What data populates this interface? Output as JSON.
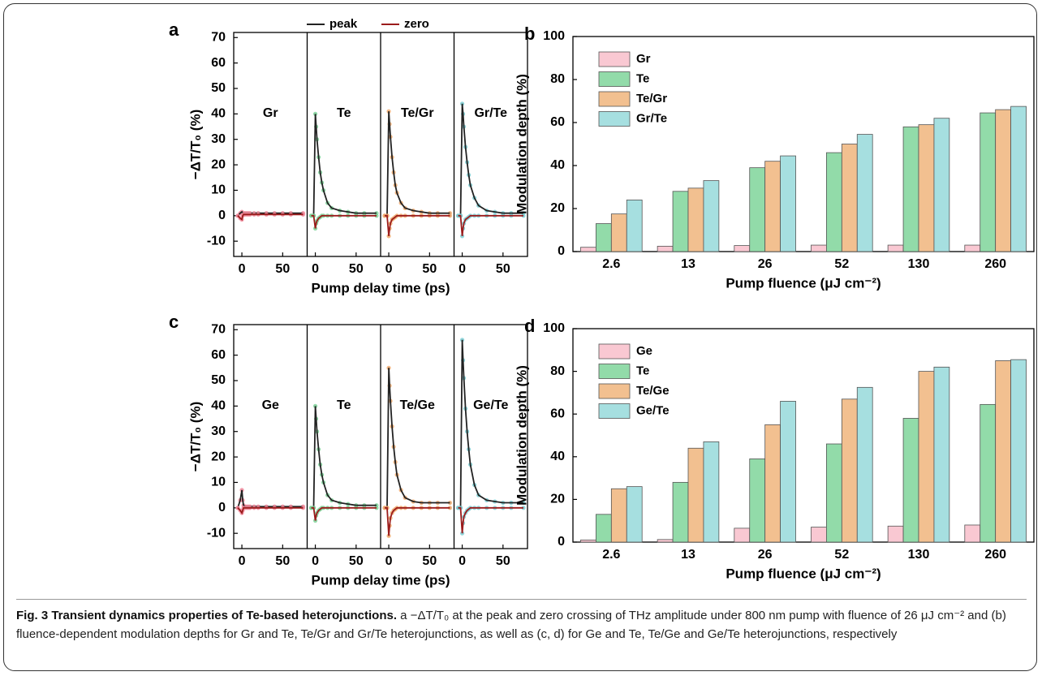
{
  "chart_data": [
    {
      "type": "line",
      "panel": "a",
      "y_label": "−ΔT/T₀ (%)",
      "x_label": "Pump delay time (ps)",
      "series": [
        {
          "name": "peak",
          "color": "#222222"
        },
        {
          "name": "zero",
          "color": "#9b1c1c"
        }
      ],
      "x": [
        -5,
        -2,
        0,
        1,
        2,
        4,
        6,
        8,
        10,
        15,
        20,
        30,
        40,
        50,
        60,
        75
      ],
      "xlim": [
        -10,
        80
      ],
      "xticks": [
        0,
        50
      ],
      "ylim": [
        -16,
        72
      ],
      "yticks": [
        -10,
        0,
        10,
        20,
        30,
        40,
        50,
        60,
        70
      ],
      "subplots": [
        {
          "name": "Gr",
          "marker_color": "#f28a9c",
          "values": [
            [
              0,
              1,
              1.5,
              1,
              1,
              1,
              1,
              1,
              1,
              1,
              1,
              1,
              1,
              1,
              1,
              1
            ],
            [
              0,
              -1,
              -1.5,
              0,
              0.5,
              0.5,
              0.5,
              0.5,
              0.5,
              0.5,
              0.5,
              0.5,
              0.5,
              0.5,
              0.5,
              0.5
            ]
          ]
        },
        {
          "name": "Te",
          "marker_color": "#7fd39a",
          "values": [
            [
              0,
              0,
              40,
              35,
              30,
              23,
              17,
              13,
              10,
              5,
              3,
              2,
              1.5,
              1,
              1,
              1
            ],
            [
              0,
              0,
              -5,
              -3,
              -2,
              -1,
              -0.5,
              0,
              0,
              0,
              0,
              0,
              0,
              0,
              0,
              0
            ]
          ]
        },
        {
          "name": "Te/Gr",
          "marker_color": "#f0aa6e",
          "values": [
            [
              0,
              0,
              41,
              36,
              31,
              23,
              17,
              12,
              9,
              5,
              3,
              2,
              1.5,
              1,
              1,
              1
            ],
            [
              0,
              0,
              -8,
              -5,
              -3,
              -1.5,
              -1,
              -0.5,
              0,
              0,
              0,
              0,
              0,
              0,
              0,
              0
            ]
          ]
        },
        {
          "name": "Gr/Te",
          "marker_color": "#7fd0d6",
          "values": [
            [
              0,
              0,
              44,
              40,
              35,
              27,
              21,
              16,
              12,
              7,
              4,
              2,
              1.5,
              1,
              1,
              1
            ],
            [
              0,
              0,
              -8,
              -5,
              -3,
              -1.5,
              -1,
              -0.5,
              0,
              0,
              0,
              0,
              0,
              0,
              0,
              0
            ]
          ]
        }
      ]
    },
    {
      "type": "bar",
      "panel": "b",
      "y_label": "Modulation depth (%)",
      "x_label": "Pump fluence (μJ cm⁻²)",
      "categories": [
        "2.6",
        "13",
        "26",
        "52",
        "130",
        "260"
      ],
      "ylim": [
        0,
        100
      ],
      "yticks": [
        0,
        20,
        40,
        60,
        80,
        100
      ],
      "series": [
        {
          "name": "Gr",
          "color": "#f9c8d2",
          "values": [
            2,
            2.5,
            2.8,
            3,
            3,
            3
          ]
        },
        {
          "name": "Te",
          "color": "#92dba9",
          "values": [
            13,
            28,
            39,
            46,
            58,
            64.5
          ]
        },
        {
          "name": "Te/Gr",
          "color": "#f2c090",
          "values": [
            17.5,
            29.5,
            42,
            50,
            59,
            66
          ]
        },
        {
          "name": "Gr/Te",
          "color": "#a6dfe0",
          "values": [
            24,
            33,
            44.5,
            54.5,
            62,
            67.5
          ]
        }
      ]
    },
    {
      "type": "line",
      "panel": "c",
      "y_label": "−ΔT/T₀ (%)",
      "x_label": "Pump delay time (ps)",
      "x": [
        -5,
        -2,
        0,
        1,
        2,
        4,
        6,
        8,
        10,
        15,
        20,
        30,
        40,
        50,
        60,
        75
      ],
      "xlim": [
        -10,
        80
      ],
      "xticks": [
        0,
        50
      ],
      "ylim": [
        -16,
        72
      ],
      "yticks": [
        -10,
        0,
        10,
        20,
        30,
        40,
        50,
        60,
        70
      ],
      "series": [
        {
          "color": "#222222"
        },
        {
          "color": "#9b1c1c"
        }
      ],
      "subplots": [
        {
          "name": "Ge",
          "marker_color": "#f28a9c",
          "values": [
            [
              0,
              3,
              7,
              3,
              1,
              0.5,
              0.5,
              0.5,
              0.5,
              0.5,
              0.5,
              0.5,
              0.5,
              0.5,
              0.5,
              0.5
            ],
            [
              0,
              -1,
              -2,
              -1,
              0,
              0,
              0,
              0,
              0,
              0,
              0,
              0,
              0,
              0,
              0,
              0
            ]
          ]
        },
        {
          "name": "Te",
          "marker_color": "#7fd39a",
          "values": [
            [
              0,
              0,
              40,
              35,
              30,
              23,
              17,
              13,
              10,
              5,
              3,
              2,
              1.5,
              1,
              1,
              1
            ],
            [
              0,
              0,
              -5,
              -3,
              -2,
              -1,
              -0.5,
              0,
              0,
              0,
              0,
              0,
              0,
              0,
              0,
              0
            ]
          ]
        },
        {
          "name": "Te/Ge",
          "marker_color": "#f0aa6e",
          "values": [
            [
              0,
              0,
              55,
              48,
              42,
              32,
              24,
              18,
              13,
              7,
              4,
              2.5,
              2,
              2,
              2,
              2
            ],
            [
              0,
              0,
              -11,
              -7,
              -4,
              -2,
              -1,
              -0.5,
              0,
              0,
              0,
              0,
              0,
              0,
              0,
              0
            ]
          ]
        },
        {
          "name": "Ge/Te",
          "marker_color": "#7fd0d6",
          "values": [
            [
              0,
              0,
              66,
              58,
              51,
              39,
              30,
              23,
              17,
              9,
              5,
              3,
              2.5,
              2,
              2,
              2
            ],
            [
              0,
              0,
              -10,
              -6,
              -3.5,
              -2,
              -1,
              -0.5,
              0,
              0,
              0,
              0,
              0,
              0,
              0,
              0
            ]
          ]
        }
      ]
    },
    {
      "type": "bar",
      "panel": "d",
      "y_label": "Modulation depth (%)",
      "x_label": "Pump fluence (μJ cm⁻²)",
      "categories": [
        "2.6",
        "13",
        "26",
        "52",
        "130",
        "260"
      ],
      "ylim": [
        0,
        100
      ],
      "yticks": [
        0,
        20,
        40,
        60,
        80,
        100
      ],
      "series": [
        {
          "name": "Ge",
          "color": "#f9c8d2",
          "values": [
            1,
            1.2,
            6.5,
            7,
            7.5,
            8
          ]
        },
        {
          "name": "Te",
          "color": "#92dba9",
          "values": [
            13,
            28,
            39,
            46,
            58,
            64.5
          ]
        },
        {
          "name": "Te/Ge",
          "color": "#f2c090",
          "values": [
            25,
            44,
            55,
            67,
            80,
            85
          ]
        },
        {
          "name": "Ge/Te",
          "color": "#a6dfe0",
          "values": [
            26,
            47,
            66,
            72.5,
            82,
            85.5
          ]
        }
      ]
    }
  ],
  "caption": {
    "label": "Fig. 3",
    "title": "Transient dynamics properties of Te-based heterojunctions.",
    "text": "a −ΔT/T₀ at the peak and zero crossing of THz amplitude under 800 nm pump with fluence of 26 μJ cm⁻² and (b) fluence-dependent modulation depths for Gr and Te, Te/Gr and Gr/Te heterojunctions, as well as (c, d) for Ge and Te, Te/Ge and Ge/Te heterojunctions, respectively"
  }
}
